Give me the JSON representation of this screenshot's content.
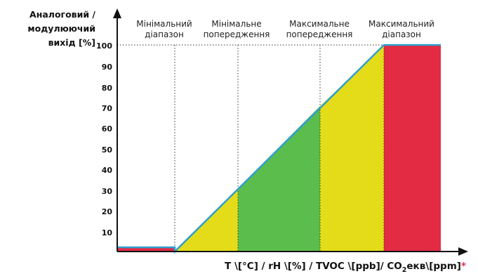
{
  "y_axis": {
    "label_lines": [
      "Аналоговий /",
      "модулюючий",
      "вихід [%]"
    ],
    "ticks": [
      "10",
      "20",
      "30",
      "40",
      "50",
      "60",
      "70",
      "80",
      "90",
      "100"
    ]
  },
  "x_axis": {
    "label_main": "T \\[°C] / rH \\[%] / TVOC \\[ppb]/ CO",
    "label_sub": "2",
    "label_tail": "екв\\[ppm]",
    "label_star": "*"
  },
  "zones": [
    {
      "lines": [
        "Мінімальний",
        "діапазон"
      ]
    },
    {
      "lines": [
        "Мінімальне",
        "попередження"
      ]
    },
    {
      "lines": [
        "Максимальне",
        "попередження"
      ]
    },
    {
      "lines": [
        "Максимальний",
        "діапазон"
      ]
    }
  ],
  "colors": {
    "red": "#e32b44",
    "yellow": "#e4dc18",
    "green": "#5bbd4b",
    "line": "#2f9fd0",
    "axis": "#111111",
    "star": "#e32b44"
  },
  "output_profile": {
    "min_range_level_percent": 2,
    "ramp_start_percent": 0,
    "ramp_end_percent": 100,
    "max_range_level_percent": 100
  }
}
